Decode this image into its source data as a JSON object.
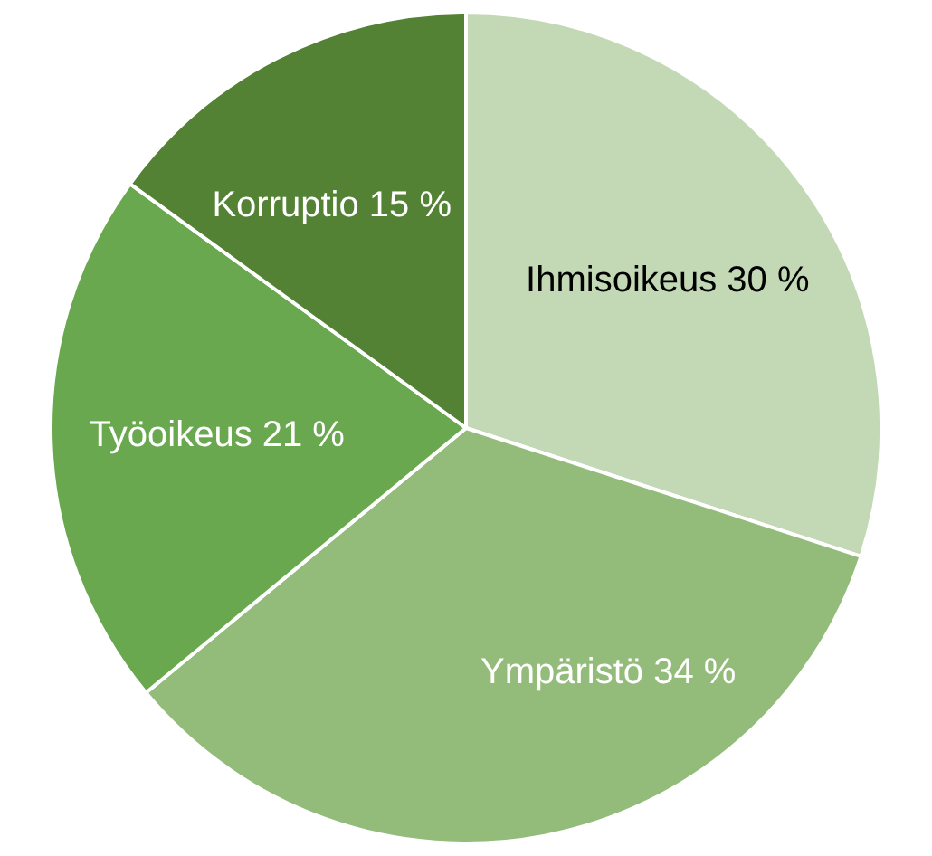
{
  "chart_data": {
    "type": "pie",
    "categories": [
      "Ihmisoikeus",
      "Ympäristö",
      "Työoikeus",
      "Korruptio"
    ],
    "values": [
      30,
      34,
      21,
      15
    ],
    "colors": [
      "#c3d9b5",
      "#93bb7a",
      "#6aa84f",
      "#548235"
    ],
    "value_labels": [
      "30 %",
      "34 %",
      "21 %",
      "15 %"
    ],
    "legend": false
  }
}
